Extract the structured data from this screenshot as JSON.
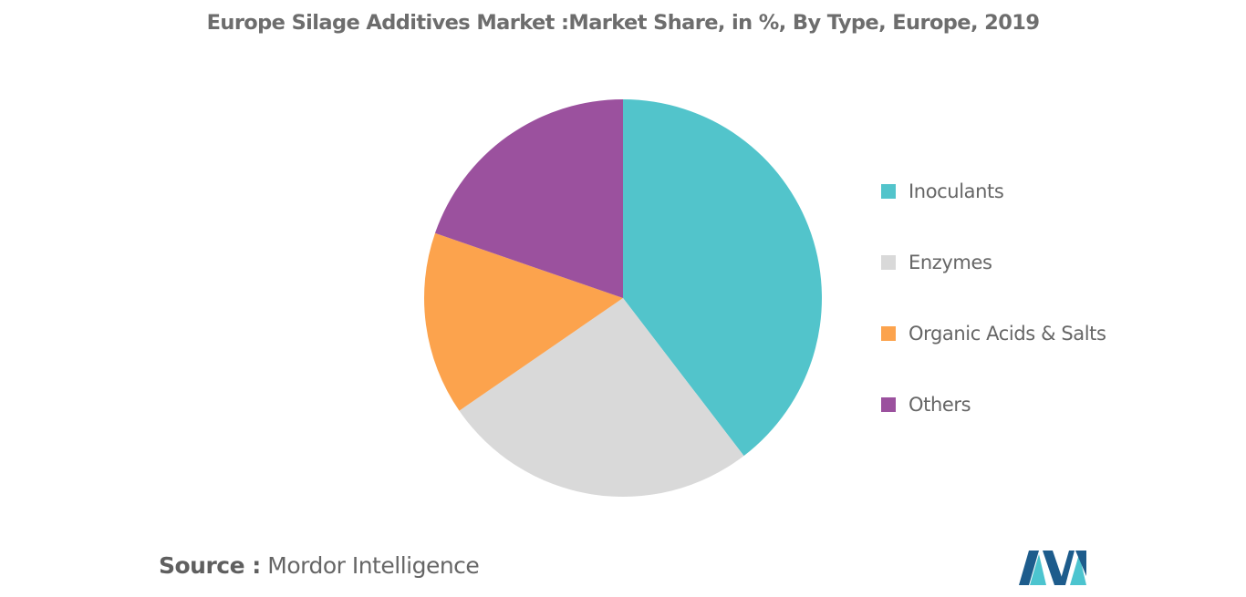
{
  "title": "Europe Silage Additives Market :Market Share, in %, By Type, Europe, 2019",
  "chart_data": {
    "type": "pie",
    "title": "Europe Silage Additives Market :Market Share, in %, By Type, Europe, 2019",
    "series": [
      {
        "name": "Inoculants",
        "value": 39.6,
        "color": "#52c4cb"
      },
      {
        "name": "Enzymes",
        "value": 25.8,
        "color": "#d9d9d9"
      },
      {
        "name": "Organic Acids & Salts",
        "value": 14.9,
        "color": "#fca34d"
      },
      {
        "name": "Others",
        "value": 19.7,
        "color": "#9b519e"
      }
    ],
    "start_angle_deg": 0,
    "direction": "clockwise",
    "legend_position": "right"
  },
  "source": {
    "label": "Source :",
    "text": "Mordor Intelligence"
  },
  "logo": {
    "icon": "mordor-intelligence-logo",
    "colors": [
      "#1d5c8c",
      "#4cc4cf"
    ]
  }
}
